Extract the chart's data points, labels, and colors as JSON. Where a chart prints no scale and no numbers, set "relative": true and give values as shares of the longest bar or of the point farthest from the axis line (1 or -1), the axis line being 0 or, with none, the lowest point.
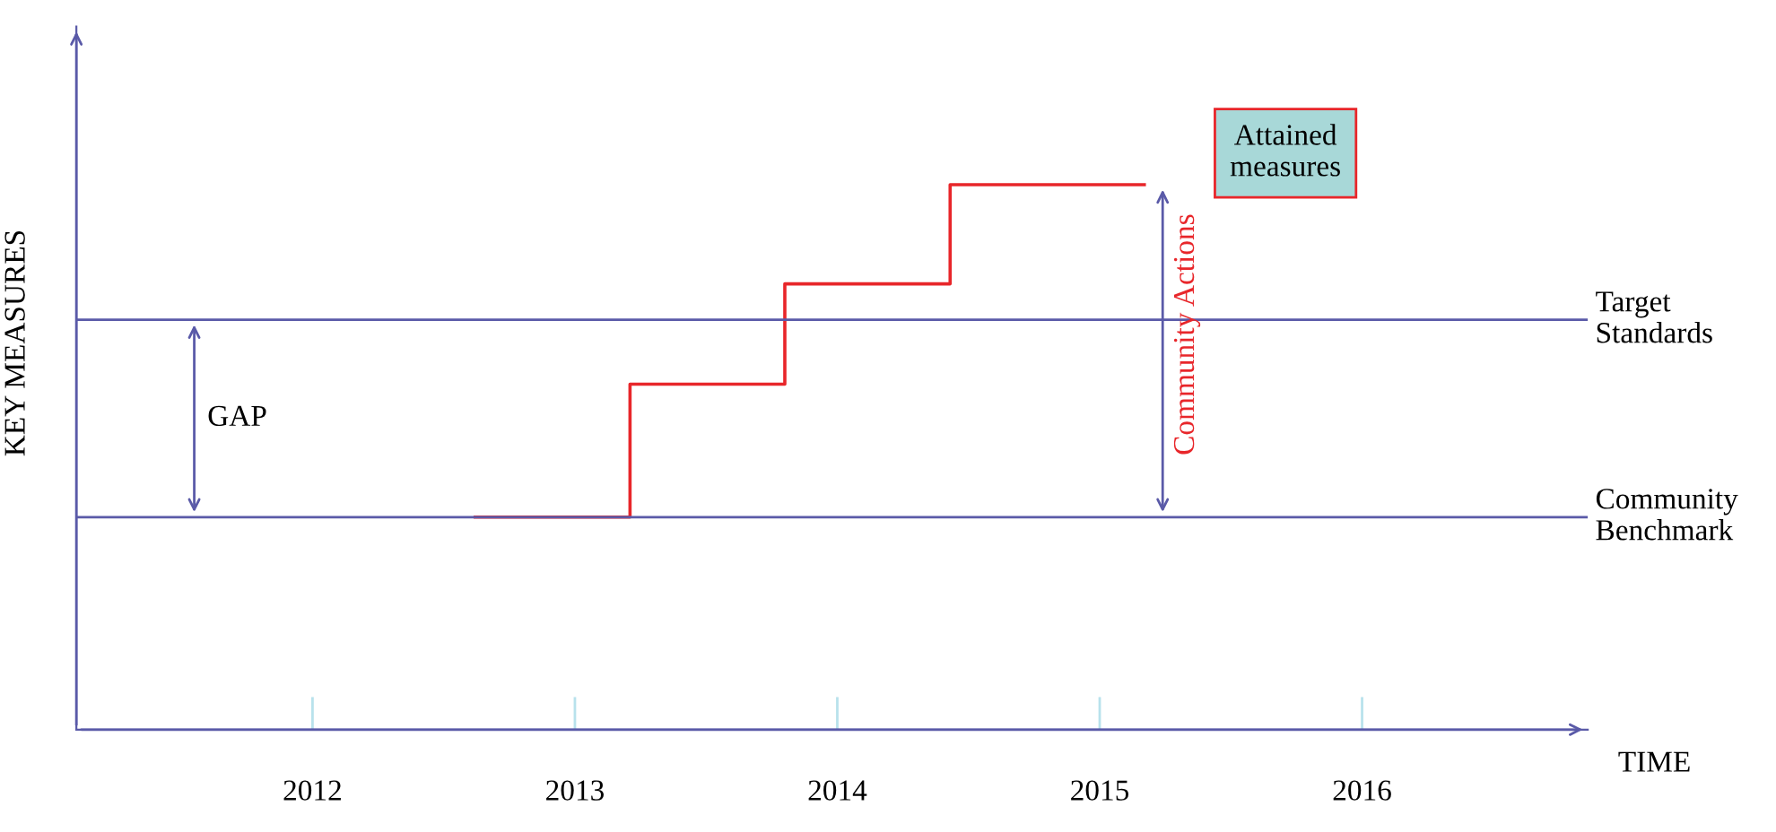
{
  "chart_data": {
    "type": "step",
    "relative": true,
    "ylabel": "KEY MEASURES",
    "xlabel": "TIME",
    "x": [
      2012.62,
      2013.21,
      2013.8,
      2014.43,
      2015.17
    ],
    "xlim": [
      2011.1,
      2016.86
    ],
    "xticks": [
      2012,
      2013,
      2014,
      2015,
      2016
    ],
    "series": [
      {
        "color": "#e8262a",
        "values": [
          0.39,
          0.634,
          0.818,
          1,
          1
        ]
      }
    ],
    "ref_lines": [
      {
        "axis": "y",
        "value": 0.752,
        "label": "Target Standards",
        "color": "#5a5aa8"
      },
      {
        "axis": "y",
        "value": 0.39,
        "label": "Community Benchmark",
        "color": "#5a5aa8"
      }
    ],
    "annotations": [
      "GAP",
      "Community Actions",
      "Attained measures"
    ],
    "grid": false
  }
}
